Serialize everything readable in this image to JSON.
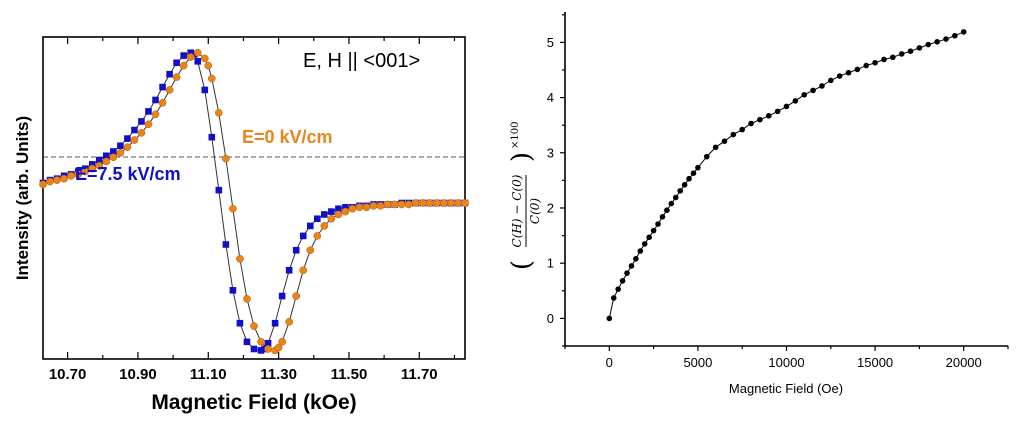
{
  "chart_data": [
    {
      "type": "scatter",
      "annotation": "E, H || <001>",
      "xlabel": "Magnetic Field (kOe)",
      "ylabel": "Intensity (arb. Units)",
      "xlim": [
        10.63,
        11.83
      ],
      "ylim": [
        -1.1,
        1.15
      ],
      "x_ticks": [
        10.7,
        10.9,
        11.1,
        11.3,
        11.5,
        11.7
      ],
      "x_tick_labels": [
        "10.70",
        "10.90",
        "11.10",
        "11.30",
        "11.50",
        "11.70"
      ],
      "baseline": 0,
      "series": [
        {
          "name": "E=0 kV/cm",
          "color": "#E8841A",
          "marker": "circle",
          "x": [
            10.63,
            10.65,
            10.67,
            10.69,
            10.71,
            10.73,
            10.75,
            10.77,
            10.79,
            10.81,
            10.83,
            10.85,
            10.87,
            10.89,
            10.91,
            10.93,
            10.95,
            10.97,
            10.99,
            11.01,
            11.03,
            11.05,
            11.07,
            11.09,
            11.1,
            11.11,
            11.13,
            11.15,
            11.17,
            11.19,
            11.21,
            11.23,
            11.25,
            11.27,
            11.29,
            11.3,
            11.31,
            11.33,
            11.35,
            11.37,
            11.39,
            11.41,
            11.43,
            11.45,
            11.47,
            11.49,
            11.51,
            11.53,
            11.55,
            11.57,
            11.59,
            11.61,
            11.63,
            11.65,
            11.67,
            11.69,
            11.71,
            11.73,
            11.75,
            11.77,
            11.79,
            11.81,
            11.83
          ],
          "y": [
            0.12,
            0.14,
            0.15,
            0.16,
            0.18,
            0.19,
            0.21,
            0.23,
            0.25,
            0.28,
            0.31,
            0.34,
            0.38,
            0.43,
            0.48,
            0.54,
            0.61,
            0.69,
            0.78,
            0.87,
            0.95,
            1.01,
            1.04,
            1.0,
            0.95,
            0.86,
            0.62,
            0.3,
            -0.05,
            -0.4,
            -0.68,
            -0.87,
            -0.98,
            -1.03,
            -1.04,
            -1.02,
            -0.98,
            -0.84,
            -0.66,
            -0.48,
            -0.34,
            -0.24,
            -0.17,
            -0.12,
            -0.09,
            -0.07,
            -0.05,
            -0.04,
            -0.04,
            -0.03,
            -0.03,
            -0.02,
            -0.02,
            -0.02,
            -0.02,
            -0.01,
            -0.01,
            -0.01,
            -0.01,
            -0.01,
            -0.01,
            -0.01,
            -0.01
          ]
        },
        {
          "name": "E=7.5 kV/cm",
          "color": "#1010C8",
          "marker": "square",
          "x": [
            10.63,
            10.65,
            10.67,
            10.69,
            10.71,
            10.73,
            10.75,
            10.77,
            10.79,
            10.81,
            10.83,
            10.85,
            10.87,
            10.89,
            10.91,
            10.93,
            10.95,
            10.97,
            10.99,
            11.01,
            11.03,
            11.05,
            11.06,
            11.07,
            11.09,
            11.11,
            11.13,
            11.15,
            11.17,
            11.19,
            11.21,
            11.23,
            11.25,
            11.26,
            11.27,
            11.29,
            11.31,
            11.33,
            11.35,
            11.37,
            11.39,
            11.41,
            11.43,
            11.45,
            11.47,
            11.49,
            11.51,
            11.53,
            11.55,
            11.57,
            11.59,
            11.61,
            11.63,
            11.65,
            11.67,
            11.69,
            11.71,
            11.73,
            11.75,
            11.77,
            11.79,
            11.81,
            11.83
          ],
          "y": [
            0.13,
            0.15,
            0.16,
            0.18,
            0.19,
            0.21,
            0.23,
            0.26,
            0.29,
            0.32,
            0.35,
            0.39,
            0.44,
            0.5,
            0.56,
            0.63,
            0.71,
            0.8,
            0.89,
            0.97,
            1.02,
            1.04,
            1.03,
            0.98,
            0.78,
            0.45,
            0.08,
            -0.3,
            -0.62,
            -0.85,
            -0.98,
            -1.03,
            -1.04,
            -1.03,
            -0.99,
            -0.85,
            -0.66,
            -0.48,
            -0.34,
            -0.24,
            -0.17,
            -0.12,
            -0.09,
            -0.07,
            -0.05,
            -0.04,
            -0.04,
            -0.03,
            -0.03,
            -0.02,
            -0.02,
            -0.02,
            -0.02,
            -0.01,
            -0.01,
            -0.01,
            -0.01,
            -0.01,
            -0.01,
            -0.01,
            -0.01,
            -0.01,
            -0.01
          ]
        }
      ]
    },
    {
      "type": "scatter",
      "xlabel": "Magnetic Field (Oe)",
      "ylabel_numerator": "C(H) − C(0)",
      "ylabel_denominator": "C(0)",
      "ylabel_factor": "×100",
      "xlim": [
        -2500,
        22500
      ],
      "ylim": [
        -0.5,
        5.55
      ],
      "x_ticks": [
        0,
        5000,
        10000,
        15000,
        20000
      ],
      "x_tick_labels": [
        "0",
        "5000",
        "10000",
        "15000",
        "20000"
      ],
      "y_ticks": [
        0,
        1,
        2,
        3,
        4,
        5
      ],
      "y_tick_labels": [
        "0",
        "1",
        "2",
        "3",
        "4",
        "5"
      ],
      "color": "#000000",
      "x": [
        0,
        250,
        500,
        750,
        1000,
        1250,
        1500,
        1750,
        2000,
        2250,
        2500,
        2750,
        3000,
        3250,
        3500,
        3750,
        4000,
        4250,
        4500,
        4750,
        5000,
        5500,
        6000,
        6500,
        7000,
        7500,
        8000,
        8500,
        9000,
        9500,
        10000,
        10500,
        11000,
        11500,
        12000,
        12500,
        13000,
        13500,
        14000,
        14500,
        15000,
        15500,
        16000,
        16500,
        17000,
        17500,
        18000,
        18500,
        19000,
        19500,
        20000
      ],
      "y": [
        0.0,
        0.37,
        0.53,
        0.68,
        0.82,
        0.95,
        1.08,
        1.22,
        1.35,
        1.47,
        1.59,
        1.71,
        1.84,
        1.96,
        2.08,
        2.19,
        2.31,
        2.42,
        2.53,
        2.63,
        2.73,
        2.93,
        3.1,
        3.21,
        3.33,
        3.42,
        3.53,
        3.6,
        3.67,
        3.75,
        3.84,
        3.94,
        4.05,
        4.13,
        4.21,
        4.31,
        4.39,
        4.45,
        4.51,
        4.58,
        4.63,
        4.69,
        4.73,
        4.79,
        4.84,
        4.9,
        4.96,
        5.01,
        5.06,
        5.12,
        5.19
      ]
    }
  ]
}
